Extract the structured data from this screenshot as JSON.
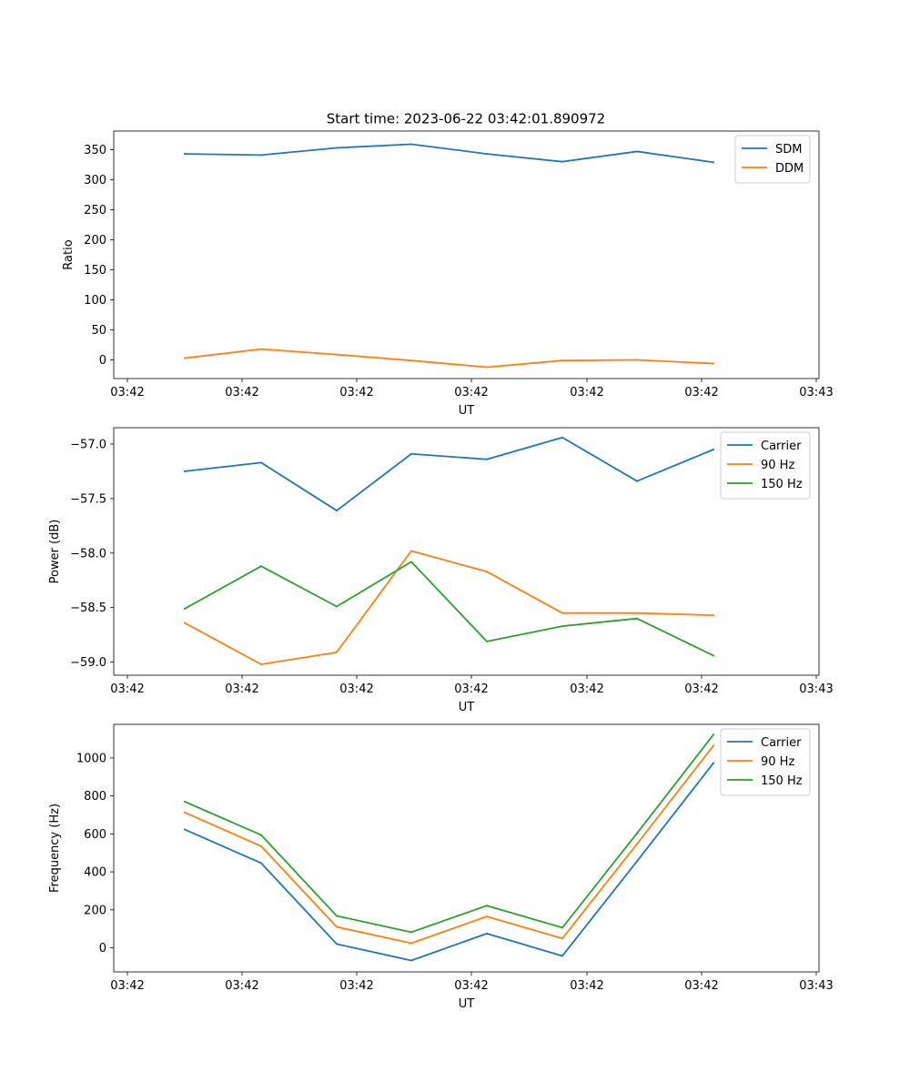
{
  "title": "Start time: 2023-06-22 03:42:01.890972",
  "chart_data": [
    {
      "type": "line",
      "ylabel": "Ratio",
      "xlabel": "UT",
      "x_tick_labels": [
        "03:42",
        "03:42",
        "03:42",
        "03:42",
        "03:42",
        "03:42",
        "03:43"
      ],
      "y_ticks": [
        0,
        50,
        100,
        150,
        200,
        250,
        300,
        350
      ],
      "ylim": [
        -31,
        381
      ],
      "legend_position": "upper right",
      "series": [
        {
          "name": "SDM",
          "color": "#1f77b4",
          "values": [
            343,
            341,
            353,
            359,
            343,
            330,
            347,
            329
          ]
        },
        {
          "name": "DDM",
          "color": "#ff7f0e",
          "values": [
            3,
            18,
            9,
            -1,
            -12,
            -1,
            0,
            -6
          ]
        }
      ]
    },
    {
      "type": "line",
      "ylabel": "Power (dB)",
      "xlabel": "UT",
      "x_tick_labels": [
        "03:42",
        "03:42",
        "03:42",
        "03:42",
        "03:42",
        "03:42",
        "03:43"
      ],
      "y_ticks": [
        -59.0,
        -58.5,
        -58.0,
        -57.5,
        -57.0
      ],
      "y_tick_labels": [
        "−59.0",
        "−58.5",
        "−58.0",
        "−57.5",
        "−57.0"
      ],
      "ylim": [
        -59.12,
        -56.85
      ],
      "legend_position": "upper right",
      "series": [
        {
          "name": "Carrier",
          "color": "#1f77b4",
          "values": [
            -57.25,
            -57.17,
            -57.61,
            -57.09,
            -57.14,
            -56.94,
            -57.34,
            -57.05
          ]
        },
        {
          "name": "90 Hz",
          "color": "#ff7f0e",
          "values": [
            -58.64,
            -59.02,
            -58.91,
            -57.98,
            -58.17,
            -58.55,
            -58.55,
            -58.57
          ]
        },
        {
          "name": "150 Hz",
          "color": "#2ca02c",
          "values": [
            -58.51,
            -58.12,
            -58.49,
            -58.08,
            -58.81,
            -58.67,
            -58.6,
            -58.94
          ]
        }
      ]
    },
    {
      "type": "line",
      "ylabel": "Frequency (Hz)",
      "xlabel": "UT",
      "x_tick_labels": [
        "03:42",
        "03:42",
        "03:42",
        "03:42",
        "03:42",
        "03:42",
        "03:43"
      ],
      "y_ticks": [
        0,
        200,
        400,
        600,
        800,
        1000
      ],
      "ylim": [
        -127,
        1177
      ],
      "legend_position": "upper right",
      "series": [
        {
          "name": "Carrier",
          "color": "#1f77b4",
          "values": [
            623,
            446,
            20,
            -67,
            75,
            -43,
            456,
            973
          ]
        },
        {
          "name": "90 Hz",
          "color": "#ff7f0e",
          "values": [
            713,
            535,
            110,
            24,
            165,
            49,
            547,
            1065
          ]
        },
        {
          "name": "150 Hz",
          "color": "#2ca02c",
          "values": [
            770,
            594,
            168,
            82,
            222,
            106,
            603,
            1123
          ]
        }
      ]
    }
  ]
}
